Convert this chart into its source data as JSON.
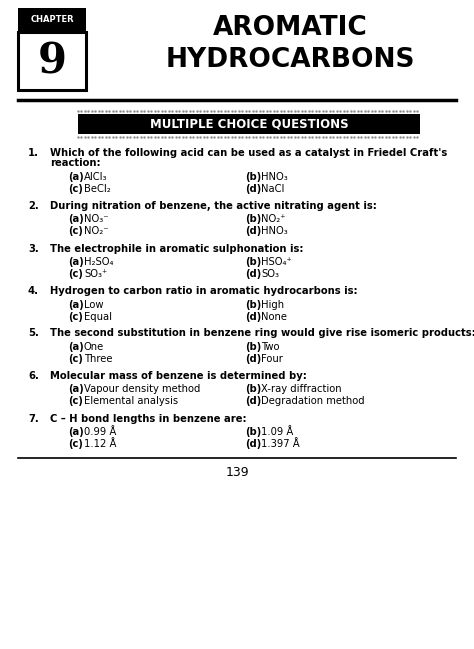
{
  "page_bg": "#ffffff",
  "chapter_label": "CHAPTER",
  "chapter_number": "9",
  "title_line1": "AROMATIC",
  "title_line2": "HYDROCARBONS",
  "section_title": "MULTIPLE CHOICE QUESTIONS",
  "questions": [
    {
      "num": "1.",
      "text_line1": "Which of the following acid can be used as a catalyst in Friedel Craft's",
      "text_line2": "reaction:",
      "two_line": true,
      "options": [
        {
          "label": "(a)",
          "text": "AlCl₃"
        },
        {
          "label": "(b)",
          "text": "HNO₃"
        },
        {
          "label": "(c)",
          "text": "BeCl₂"
        },
        {
          "label": "(d)",
          "text": "NaCl"
        }
      ]
    },
    {
      "num": "2.",
      "text_line1": "During nitration of benzene, the active nitrating agent is:",
      "text_line2": "",
      "two_line": false,
      "options": [
        {
          "label": "(a)",
          "text": "NO₃⁻"
        },
        {
          "label": "(b)",
          "text": "NO₂⁺"
        },
        {
          "label": "(c)",
          "text": "NO₂⁻"
        },
        {
          "label": "(d)",
          "text": "HNO₃"
        }
      ]
    },
    {
      "num": "3.",
      "text_line1": "The electrophile in aromatic sulphonation is:",
      "text_line2": "",
      "two_line": false,
      "options": [
        {
          "label": "(a)",
          "text": "H₂SO₄"
        },
        {
          "label": "(b)",
          "text": "HSO₄⁺"
        },
        {
          "label": "(c)",
          "text": "SO₃⁺"
        },
        {
          "label": "(d)",
          "text": "SO₃"
        }
      ]
    },
    {
      "num": "4.",
      "text_line1": "Hydrogen to carbon ratio in aromatic hydrocarbons is:",
      "text_line2": "",
      "two_line": false,
      "options": [
        {
          "label": "(a)",
          "text": "Low"
        },
        {
          "label": "(b)",
          "text": "High"
        },
        {
          "label": "(c)",
          "text": "Equal"
        },
        {
          "label": "(d)",
          "text": "None"
        }
      ]
    },
    {
      "num": "5.",
      "text_line1": "The second substitution in benzene ring would give rise isomeric products:",
      "text_line2": "",
      "two_line": false,
      "options": [
        {
          "label": "(a)",
          "text": "One"
        },
        {
          "label": "(b)",
          "text": "Two"
        },
        {
          "label": "(c)",
          "text": "Three"
        },
        {
          "label": "(d)",
          "text": "Four"
        }
      ]
    },
    {
      "num": "6.",
      "text_line1": "Molecular mass of benzene is determined by:",
      "text_line2": "",
      "two_line": false,
      "options": [
        {
          "label": "(a)",
          "text": "Vapour density method"
        },
        {
          "label": "(b)",
          "text": "X-ray diffraction"
        },
        {
          "label": "(c)",
          "text": "Elemental analysis"
        },
        {
          "label": "(d)",
          "text": "Degradation method"
        }
      ]
    },
    {
      "num": "7.",
      "text_line1": "C – H bond lengths in benzene are:",
      "text_line2": "",
      "two_line": false,
      "options": [
        {
          "label": "(a)",
          "text": "0.99 Å"
        },
        {
          "label": "(b)",
          "text": "1.09 Å"
        },
        {
          "label": "(c)",
          "text": "1.12 Å"
        },
        {
          "label": "(d)",
          "text": "1.397 Å"
        }
      ]
    }
  ],
  "page_number": "139"
}
